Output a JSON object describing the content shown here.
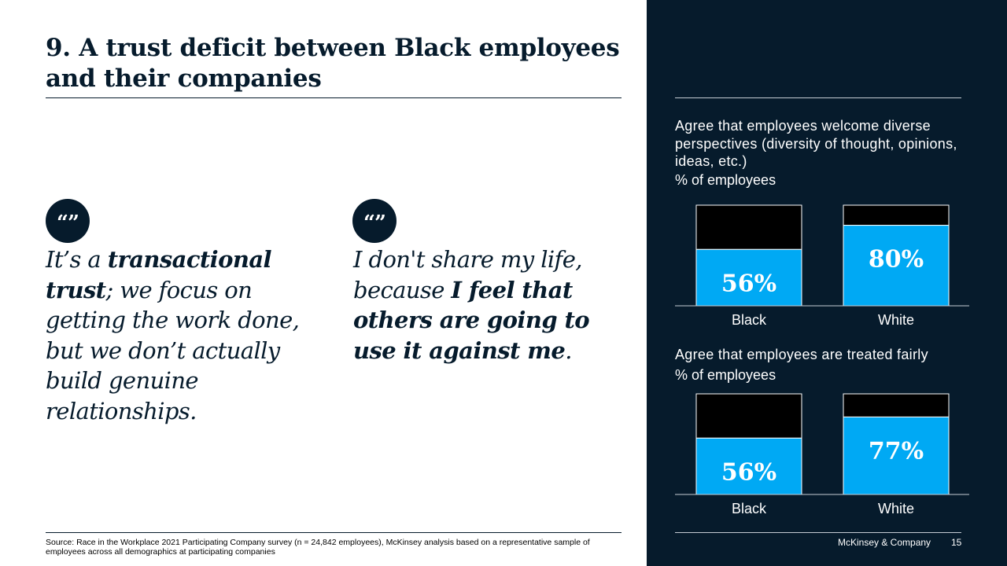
{
  "slide": {
    "title": "9. A trust deficit between Black employees and their companies",
    "quote_mark": "“”",
    "quotes": [
      {
        "segments": [
          {
            "text": "It’s a ",
            "bold": false
          },
          {
            "text": "transactional trust",
            "bold": true
          },
          {
            "text": "; we focus on getting the work done, but we don’t actually build genuine relationships.",
            "bold": false
          }
        ]
      },
      {
        "segments": [
          {
            "text": "I don't share my life, because ",
            "bold": false
          },
          {
            "text": "I feel that others are going to use it against me",
            "bold": true
          },
          {
            "text": ".",
            "bold": false
          }
        ]
      }
    ],
    "source": "Source: Race in the Workplace 2021 Participating Company survey (n = 24,842 employees), McKinsey analysis based on a representative sample of employees across all demographics at participating companies",
    "footer": {
      "brand": "McKinsey & Company",
      "page": "15"
    }
  },
  "colors": {
    "navy": "#061b2c",
    "bar": "#00a9f4",
    "remainder": "#000000",
    "text_on_dark": "#ffffff"
  },
  "chart_data": [
    {
      "type": "bar",
      "title": "Agree that employees welcome diverse perspectives (diversity of thought, opinions, ideas, etc.)",
      "ylabel": "% of employees",
      "categories": [
        "Black",
        "White"
      ],
      "values": [
        56,
        80
      ],
      "value_labels": [
        "56%",
        "80%"
      ],
      "ylim": [
        0,
        100
      ],
      "stacked_remainder": true
    },
    {
      "type": "bar",
      "title": "Agree that employees are treated fairly",
      "ylabel": "% of employees",
      "categories": [
        "Black",
        "White"
      ],
      "values": [
        56,
        77
      ],
      "value_labels": [
        "56%",
        "77%"
      ],
      "ylim": [
        0,
        100
      ],
      "stacked_remainder": true
    }
  ]
}
